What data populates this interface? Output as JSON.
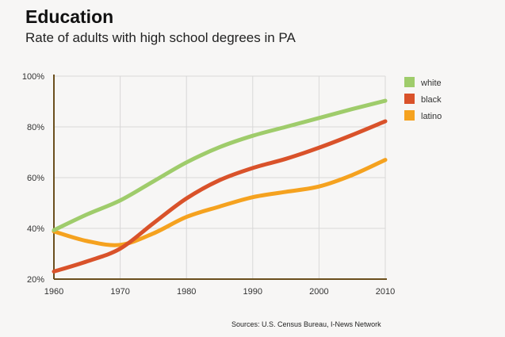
{
  "chart_data": {
    "type": "line",
    "title": "Education",
    "subtitle": "Rate of adults with high school degrees in PA",
    "xlabel": "",
    "ylabel": "",
    "x": [
      1960,
      1965,
      1970,
      1975,
      1980,
      1985,
      1990,
      1995,
      2000,
      2005,
      2010
    ],
    "xlim": [
      1960,
      2010
    ],
    "ylim": [
      20,
      100
    ],
    "xticks": [
      "1960",
      "1970",
      "1980",
      "1990",
      "2000",
      "2010"
    ],
    "xtick_values": [
      1960,
      1970,
      1980,
      1990,
      2000,
      2010
    ],
    "yticks": [
      "20%",
      "40%",
      "60%",
      "80%",
      "100%"
    ],
    "ytick_values": [
      20,
      40,
      60,
      80,
      100
    ],
    "grid": true,
    "legend_position": "right",
    "series": [
      {
        "name": "white",
        "color": "#9fcc6b",
        "values": [
          39.3,
          45.5,
          51,
          58.5,
          66,
          72,
          76.5,
          80,
          83.5,
          87,
          90.3
        ]
      },
      {
        "name": "black",
        "color": "#d9522a",
        "values": [
          23,
          27,
          32,
          42,
          51.8,
          59,
          63.8,
          67.4,
          71.8,
          76.8,
          82.2
        ]
      },
      {
        "name": "latino",
        "color": "#f5a21f",
        "values": [
          38.8,
          35,
          33.5,
          38,
          44.5,
          48.6,
          52.3,
          54.4,
          56.5,
          61,
          67
        ]
      }
    ],
    "source": "Sources: U.S. Census Bureau, I-News Network"
  }
}
